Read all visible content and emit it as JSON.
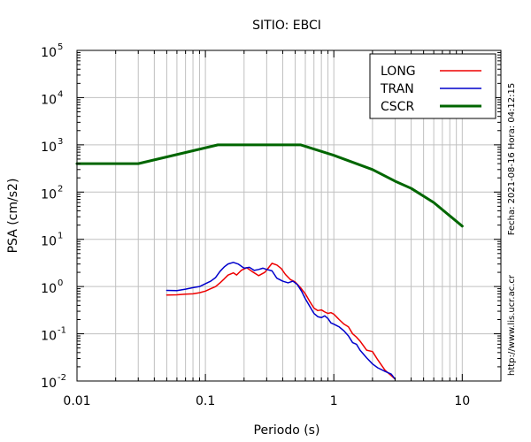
{
  "chart_data": {
    "type": "line",
    "title": "SITIO: EBCI",
    "xlabel": "Periodo (s)",
    "ylabel": "PSA (cm/s2)",
    "xscale": "log",
    "yscale": "log",
    "xlim": [
      0.01,
      20
    ],
    "ylim": [
      0.01,
      100000
    ],
    "grid": true,
    "legend_position": "top-right",
    "x_ticks": [
      {
        "value": 0.01,
        "label": "0.01"
      },
      {
        "value": 0.1,
        "label": "0.1"
      },
      {
        "value": 1,
        "label": "1"
      },
      {
        "value": 10,
        "label": "10"
      }
    ],
    "y_ticks": [
      {
        "value": 0.01,
        "base": "10",
        "exp": "-2"
      },
      {
        "value": 0.1,
        "base": "10",
        "exp": "-1"
      },
      {
        "value": 1,
        "base": "10",
        "exp": "0"
      },
      {
        "value": 10,
        "base": "10",
        "exp": "1"
      },
      {
        "value": 100,
        "base": "10",
        "exp": "2"
      },
      {
        "value": 1000,
        "base": "10",
        "exp": "3"
      },
      {
        "value": 10000,
        "base": "10",
        "exp": "4"
      },
      {
        "value": 100000,
        "base": "10",
        "exp": "5"
      }
    ],
    "side_labels": {
      "timestamp": "Fecha: 2021-08-16 Hora: 04:12:15",
      "url": "http://www.lis.ucr.ac.cr"
    },
    "series": [
      {
        "name": "LONG",
        "color": "#ee0000",
        "width": 1.5,
        "points": [
          [
            0.05,
            0.66
          ],
          [
            0.06,
            0.67
          ],
          [
            0.07,
            0.69
          ],
          [
            0.08,
            0.7
          ],
          [
            0.09,
            0.74
          ],
          [
            0.1,
            0.8
          ],
          [
            0.11,
            0.9
          ],
          [
            0.12,
            1.0
          ],
          [
            0.13,
            1.2
          ],
          [
            0.14,
            1.45
          ],
          [
            0.15,
            1.75
          ],
          [
            0.165,
            1.95
          ],
          [
            0.175,
            1.75
          ],
          [
            0.19,
            2.2
          ],
          [
            0.21,
            2.5
          ],
          [
            0.23,
            2.1
          ],
          [
            0.26,
            1.7
          ],
          [
            0.29,
            2.0
          ],
          [
            0.31,
            2.5
          ],
          [
            0.33,
            3.1
          ],
          [
            0.36,
            2.85
          ],
          [
            0.39,
            2.4
          ],
          [
            0.42,
            1.8
          ],
          [
            0.46,
            1.4
          ],
          [
            0.5,
            1.25
          ],
          [
            0.55,
            0.95
          ],
          [
            0.6,
            0.7
          ],
          [
            0.65,
            0.48
          ],
          [
            0.7,
            0.35
          ],
          [
            0.75,
            0.31
          ],
          [
            0.8,
            0.32
          ],
          [
            0.85,
            0.29
          ],
          [
            0.9,
            0.27
          ],
          [
            0.95,
            0.28
          ],
          [
            1.0,
            0.26
          ],
          [
            1.1,
            0.2
          ],
          [
            1.2,
            0.16
          ],
          [
            1.3,
            0.14
          ],
          [
            1.4,
            0.1
          ],
          [
            1.5,
            0.085
          ],
          [
            1.6,
            0.07
          ],
          [
            1.8,
            0.045
          ],
          [
            2.0,
            0.042
          ],
          [
            2.2,
            0.028
          ],
          [
            2.5,
            0.017
          ],
          [
            2.8,
            0.013
          ],
          [
            3.0,
            0.011
          ]
        ]
      },
      {
        "name": "TRAN",
        "color": "#0000cc",
        "width": 1.5,
        "points": [
          [
            0.05,
            0.83
          ],
          [
            0.06,
            0.82
          ],
          [
            0.07,
            0.88
          ],
          [
            0.08,
            0.95
          ],
          [
            0.09,
            1.0
          ],
          [
            0.1,
            1.15
          ],
          [
            0.11,
            1.3
          ],
          [
            0.12,
            1.55
          ],
          [
            0.13,
            2.1
          ],
          [
            0.14,
            2.6
          ],
          [
            0.15,
            3.0
          ],
          [
            0.165,
            3.25
          ],
          [
            0.18,
            3.0
          ],
          [
            0.2,
            2.45
          ],
          [
            0.22,
            2.55
          ],
          [
            0.24,
            2.2
          ],
          [
            0.26,
            2.3
          ],
          [
            0.28,
            2.45
          ],
          [
            0.3,
            2.3
          ],
          [
            0.33,
            2.15
          ],
          [
            0.36,
            1.5
          ],
          [
            0.4,
            1.3
          ],
          [
            0.44,
            1.2
          ],
          [
            0.48,
            1.3
          ],
          [
            0.52,
            1.1
          ],
          [
            0.56,
            0.8
          ],
          [
            0.6,
            0.55
          ],
          [
            0.65,
            0.38
          ],
          [
            0.7,
            0.27
          ],
          [
            0.75,
            0.23
          ],
          [
            0.8,
            0.22
          ],
          [
            0.85,
            0.24
          ],
          [
            0.9,
            0.21
          ],
          [
            0.95,
            0.17
          ],
          [
            1.0,
            0.16
          ],
          [
            1.1,
            0.14
          ],
          [
            1.2,
            0.115
          ],
          [
            1.3,
            0.09
          ],
          [
            1.4,
            0.065
          ],
          [
            1.5,
            0.06
          ],
          [
            1.6,
            0.045
          ],
          [
            1.8,
            0.031
          ],
          [
            2.0,
            0.023
          ],
          [
            2.2,
            0.019
          ],
          [
            2.5,
            0.016
          ],
          [
            2.8,
            0.014
          ],
          [
            3.0,
            0.011
          ]
        ]
      },
      {
        "name": "CSCR",
        "color": "#006600",
        "width": 3,
        "points": [
          [
            0.01,
            400
          ],
          [
            0.03,
            400
          ],
          [
            0.125,
            1000
          ],
          [
            0.55,
            1000
          ],
          [
            1.0,
            600
          ],
          [
            2.0,
            300
          ],
          [
            3.0,
            170
          ],
          [
            4.0,
            120
          ],
          [
            6.0,
            60
          ],
          [
            10.0,
            19
          ]
        ]
      }
    ]
  }
}
